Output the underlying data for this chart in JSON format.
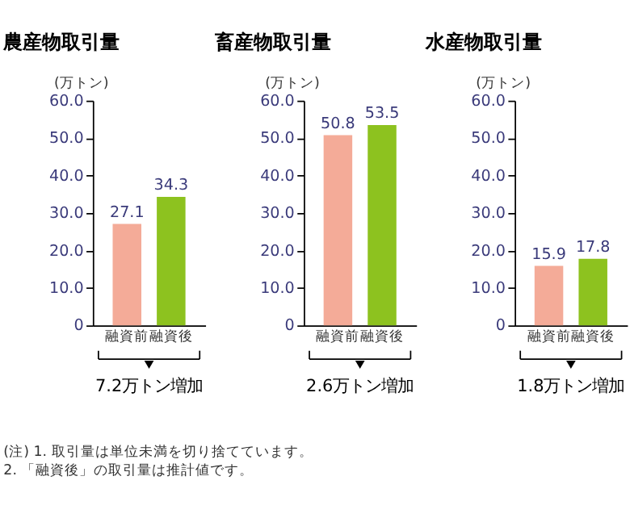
{
  "chart_data": [
    {
      "type": "bar",
      "title": "農産物取引量",
      "ylabel": "(万トン)",
      "categories": [
        "融資前",
        "融資後"
      ],
      "values": [
        27.1,
        34.3
      ],
      "colors": [
        "#f4ab98",
        "#8dc21f"
      ],
      "ylim": [
        0,
        60
      ],
      "yticks": [
        0,
        {
          "value": 10,
          "label": "10.0"
        },
        {
          "value": 20,
          "label": "20.0"
        },
        {
          "value": 30,
          "label": "30.0"
        },
        {
          "value": 40,
          "label": "40.0"
        },
        {
          "value": 50,
          "label": "50.0"
        },
        {
          "value": 60,
          "label": "60.0"
        }
      ],
      "data_labels": true,
      "grid": false,
      "annotations": [
        "7.2万トン増加"
      ]
    },
    {
      "type": "bar",
      "title": "畜産物取引量",
      "ylabel": "(万トン)",
      "categories": [
        "融資前",
        "融資後"
      ],
      "values": [
        50.8,
        53.5
      ],
      "colors": [
        "#f4ab98",
        "#8dc21f"
      ],
      "ylim": [
        0,
        60
      ],
      "yticks": [
        0,
        {
          "value": 10,
          "label": "10.0"
        },
        {
          "value": 20,
          "label": "20.0"
        },
        {
          "value": 30,
          "label": "30.0"
        },
        {
          "value": 40,
          "label": "40.0"
        },
        {
          "value": 50,
          "label": "50.0"
        },
        {
          "value": 60,
          "label": "60.0"
        }
      ],
      "data_labels": true,
      "grid": false,
      "annotations": [
        "2.6万トン増加"
      ]
    },
    {
      "type": "bar",
      "title": "水産物取引量",
      "ylabel": "(万トン)",
      "categories": [
        "融資前",
        "融資後"
      ],
      "values": [
        15.9,
        17.8
      ],
      "colors": [
        "#f4ab98",
        "#8dc21f"
      ],
      "ylim": [
        0,
        60
      ],
      "yticks": [
        0,
        {
          "value": 10,
          "label": "10.0"
        },
        {
          "value": 20,
          "label": "20.0"
        },
        {
          "value": 30,
          "label": "30.0"
        },
        {
          "value": 40,
          "label": "40.0"
        },
        {
          "value": 50,
          "label": "50.0"
        },
        {
          "value": 60,
          "label": "60.0"
        }
      ],
      "data_labels": true,
      "grid": false,
      "annotations": [
        "1.8万トン増加",
        "(注) 1. 取引量は単位未満を切り捨てています。",
        "　　 2. 「融資後」の取引量は推計値です。"
      ]
    }
  ]
}
